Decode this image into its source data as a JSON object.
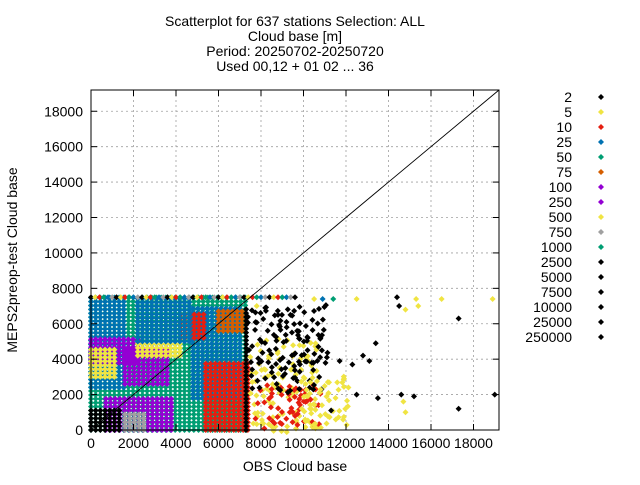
{
  "chart_data": {
    "type": "scatter",
    "title_lines": [
      "Scatterplot for  637 stations Selection: ALL",
      "Cloud base [m]",
      "Period: 20250702-20250720",
      "Used 00,12 + 01 02 ... 36"
    ],
    "xlabel": "OBS Cloud base",
    "ylabel": "MEPS2preop-test Cloud base",
    "xlim": [
      0,
      19200
    ],
    "ylim": [
      0,
      19200
    ],
    "x_ticks": [
      0,
      2000,
      4000,
      6000,
      8000,
      10000,
      12000,
      14000,
      16000,
      18000
    ],
    "y_ticks": [
      0,
      2000,
      4000,
      6000,
      8000,
      10000,
      12000,
      14000,
      16000,
      18000
    ],
    "grid": true,
    "legend_position": "right",
    "diagonal_line": true,
    "series": [
      {
        "name": "2",
        "color": "#000000"
      },
      {
        "name": "5",
        "color": "#f0e442"
      },
      {
        "name": "10",
        "color": "#e51e10"
      },
      {
        "name": "25",
        "color": "#0072b2"
      },
      {
        "name": "50",
        "color": "#009e73"
      },
      {
        "name": "75",
        "color": "#d55e00"
      },
      {
        "name": "100",
        "color": "#9400d3"
      },
      {
        "name": "250",
        "color": "#9400d3"
      },
      {
        "name": "500",
        "color": "#f0e442"
      },
      {
        "name": "750",
        "color": "#a0a0a0"
      },
      {
        "name": "1000",
        "color": "#009e73"
      },
      {
        "name": "2500",
        "color": "#000000"
      },
      {
        "name": "5000",
        "color": "#000000"
      },
      {
        "name": "7500",
        "color": "#000000"
      },
      {
        "name": "10000",
        "color": "#000000"
      },
      {
        "name": "25000",
        "color": "#000000"
      },
      {
        "name": "250000",
        "color": "#000000"
      }
    ],
    "density_regions": [
      {
        "series": "50",
        "x": [
          0,
          7400
        ],
        "y": [
          0,
          7500
        ]
      },
      {
        "series": "25",
        "x": [
          0,
          1600
        ],
        "y": [
          2400,
          7500
        ]
      },
      {
        "series": "25",
        "x": [
          4800,
          7200
        ],
        "y": [
          1800,
          7000
        ]
      },
      {
        "series": "100",
        "x": [
          0,
          2400
        ],
        "y": [
          3800,
          5200
        ]
      },
      {
        "series": "250",
        "x": [
          1600,
          3600
        ],
        "y": [
          2600,
          4600
        ]
      },
      {
        "series": "250",
        "x": [
          700,
          3800
        ],
        "y": [
          0,
          1800
        ]
      },
      {
        "series": "5",
        "x": [
          0,
          1200
        ],
        "y": [
          3000,
          4600
        ]
      },
      {
        "series": "5",
        "x": [
          2200,
          4200
        ],
        "y": [
          4200,
          5000
        ]
      },
      {
        "series": "10",
        "x": [
          4200,
          5400
        ],
        "y": [
          5200,
          6600
        ]
      },
      {
        "series": "10",
        "x": [
          5400,
          7400
        ],
        "y": [
          0,
          3800
        ]
      },
      {
        "series": "25",
        "x": [
          2200,
          4800
        ],
        "y": [
          5000,
          7500
        ]
      },
      {
        "series": "75",
        "x": [
          6000,
          7300
        ],
        "y": [
          5600,
          6800
        ]
      },
      {
        "series": "750",
        "x": [
          1600,
          2600
        ],
        "y": [
          0,
          1000
        ]
      },
      {
        "series": "2",
        "x": [
          0,
          1400
        ],
        "y": [
          0,
          1200
        ]
      },
      {
        "series": "5000",
        "x": [
          7300,
          7500
        ],
        "y": [
          0,
          7000
        ]
      },
      {
        "series": "500",
        "x": [
          7600,
          10800
        ],
        "y": [
          0,
          5200
        ]
      },
      {
        "series": "10",
        "x": [
          7800,
          10800
        ],
        "y": [
          200,
          2400
        ]
      },
      {
        "series": "2500",
        "x": [
          7500,
          11200
        ],
        "y": [
          2200,
          7200
        ]
      },
      {
        "series": "500",
        "x": [
          10000,
          12000
        ],
        "y": [
          200,
          3200
        ]
      }
    ],
    "top_row": {
      "y": 7500,
      "x_range": [
        0,
        9600
      ],
      "series": [
        "2",
        "5",
        "10",
        "50",
        "25",
        "750"
      ]
    },
    "outliers": [
      {
        "series": "5",
        "x": 7800,
        "y": 7000
      },
      {
        "series": "2500",
        "x": 8200,
        "y": 6900
      },
      {
        "series": "2500",
        "x": 8800,
        "y": 6500
      },
      {
        "series": "2500",
        "x": 9200,
        "y": 6100
      },
      {
        "series": "2500",
        "x": 9700,
        "y": 5600
      },
      {
        "series": "2500",
        "x": 10200,
        "y": 5200
      },
      {
        "series": "2500",
        "x": 10700,
        "y": 4700
      },
      {
        "series": "2500",
        "x": 11100,
        "y": 4100
      },
      {
        "series": "2500",
        "x": 11700,
        "y": 3900
      },
      {
        "series": "2500",
        "x": 11300,
        "y": 1100
      },
      {
        "series": "2500",
        "x": 12300,
        "y": 3700
      },
      {
        "series": "2500",
        "x": 12800,
        "y": 4200
      },
      {
        "series": "2500",
        "x": 12500,
        "y": 2000
      },
      {
        "series": "2500",
        "x": 13400,
        "y": 4900
      },
      {
        "series": "2500",
        "x": 13100,
        "y": 3900
      },
      {
        "series": "2500",
        "x": 13500,
        "y": 1800
      },
      {
        "series": "2500",
        "x": 14400,
        "y": 7500
      },
      {
        "series": "2500",
        "x": 14500,
        "y": 7000
      },
      {
        "series": "2500",
        "x": 14600,
        "y": 2000
      },
      {
        "series": "2500",
        "x": 15200,
        "y": 1900
      },
      {
        "series": "2500",
        "x": 17300,
        "y": 6300
      },
      {
        "series": "2500",
        "x": 17300,
        "y": 1200
      },
      {
        "series": "2500",
        "x": 19000,
        "y": 2000
      },
      {
        "series": "5",
        "x": 12500,
        "y": 7400
      },
      {
        "series": "5",
        "x": 15300,
        "y": 7400
      },
      {
        "series": "5",
        "x": 16500,
        "y": 7400
      },
      {
        "series": "5",
        "x": 18900,
        "y": 7400
      },
      {
        "series": "5",
        "x": 14800,
        "y": 6800
      },
      {
        "series": "5",
        "x": 15400,
        "y": 7000
      },
      {
        "series": "5",
        "x": 14800,
        "y": 1000
      },
      {
        "series": "5",
        "x": 14700,
        "y": 1600
      },
      {
        "series": "25",
        "x": 10900,
        "y": 7400
      },
      {
        "series": "50",
        "x": 11400,
        "y": 7400
      },
      {
        "series": "5",
        "x": 10500,
        "y": 7400
      },
      {
        "series": "10",
        "x": 8900,
        "y": 400
      },
      {
        "series": "10",
        "x": 9600,
        "y": 800
      }
    ]
  }
}
